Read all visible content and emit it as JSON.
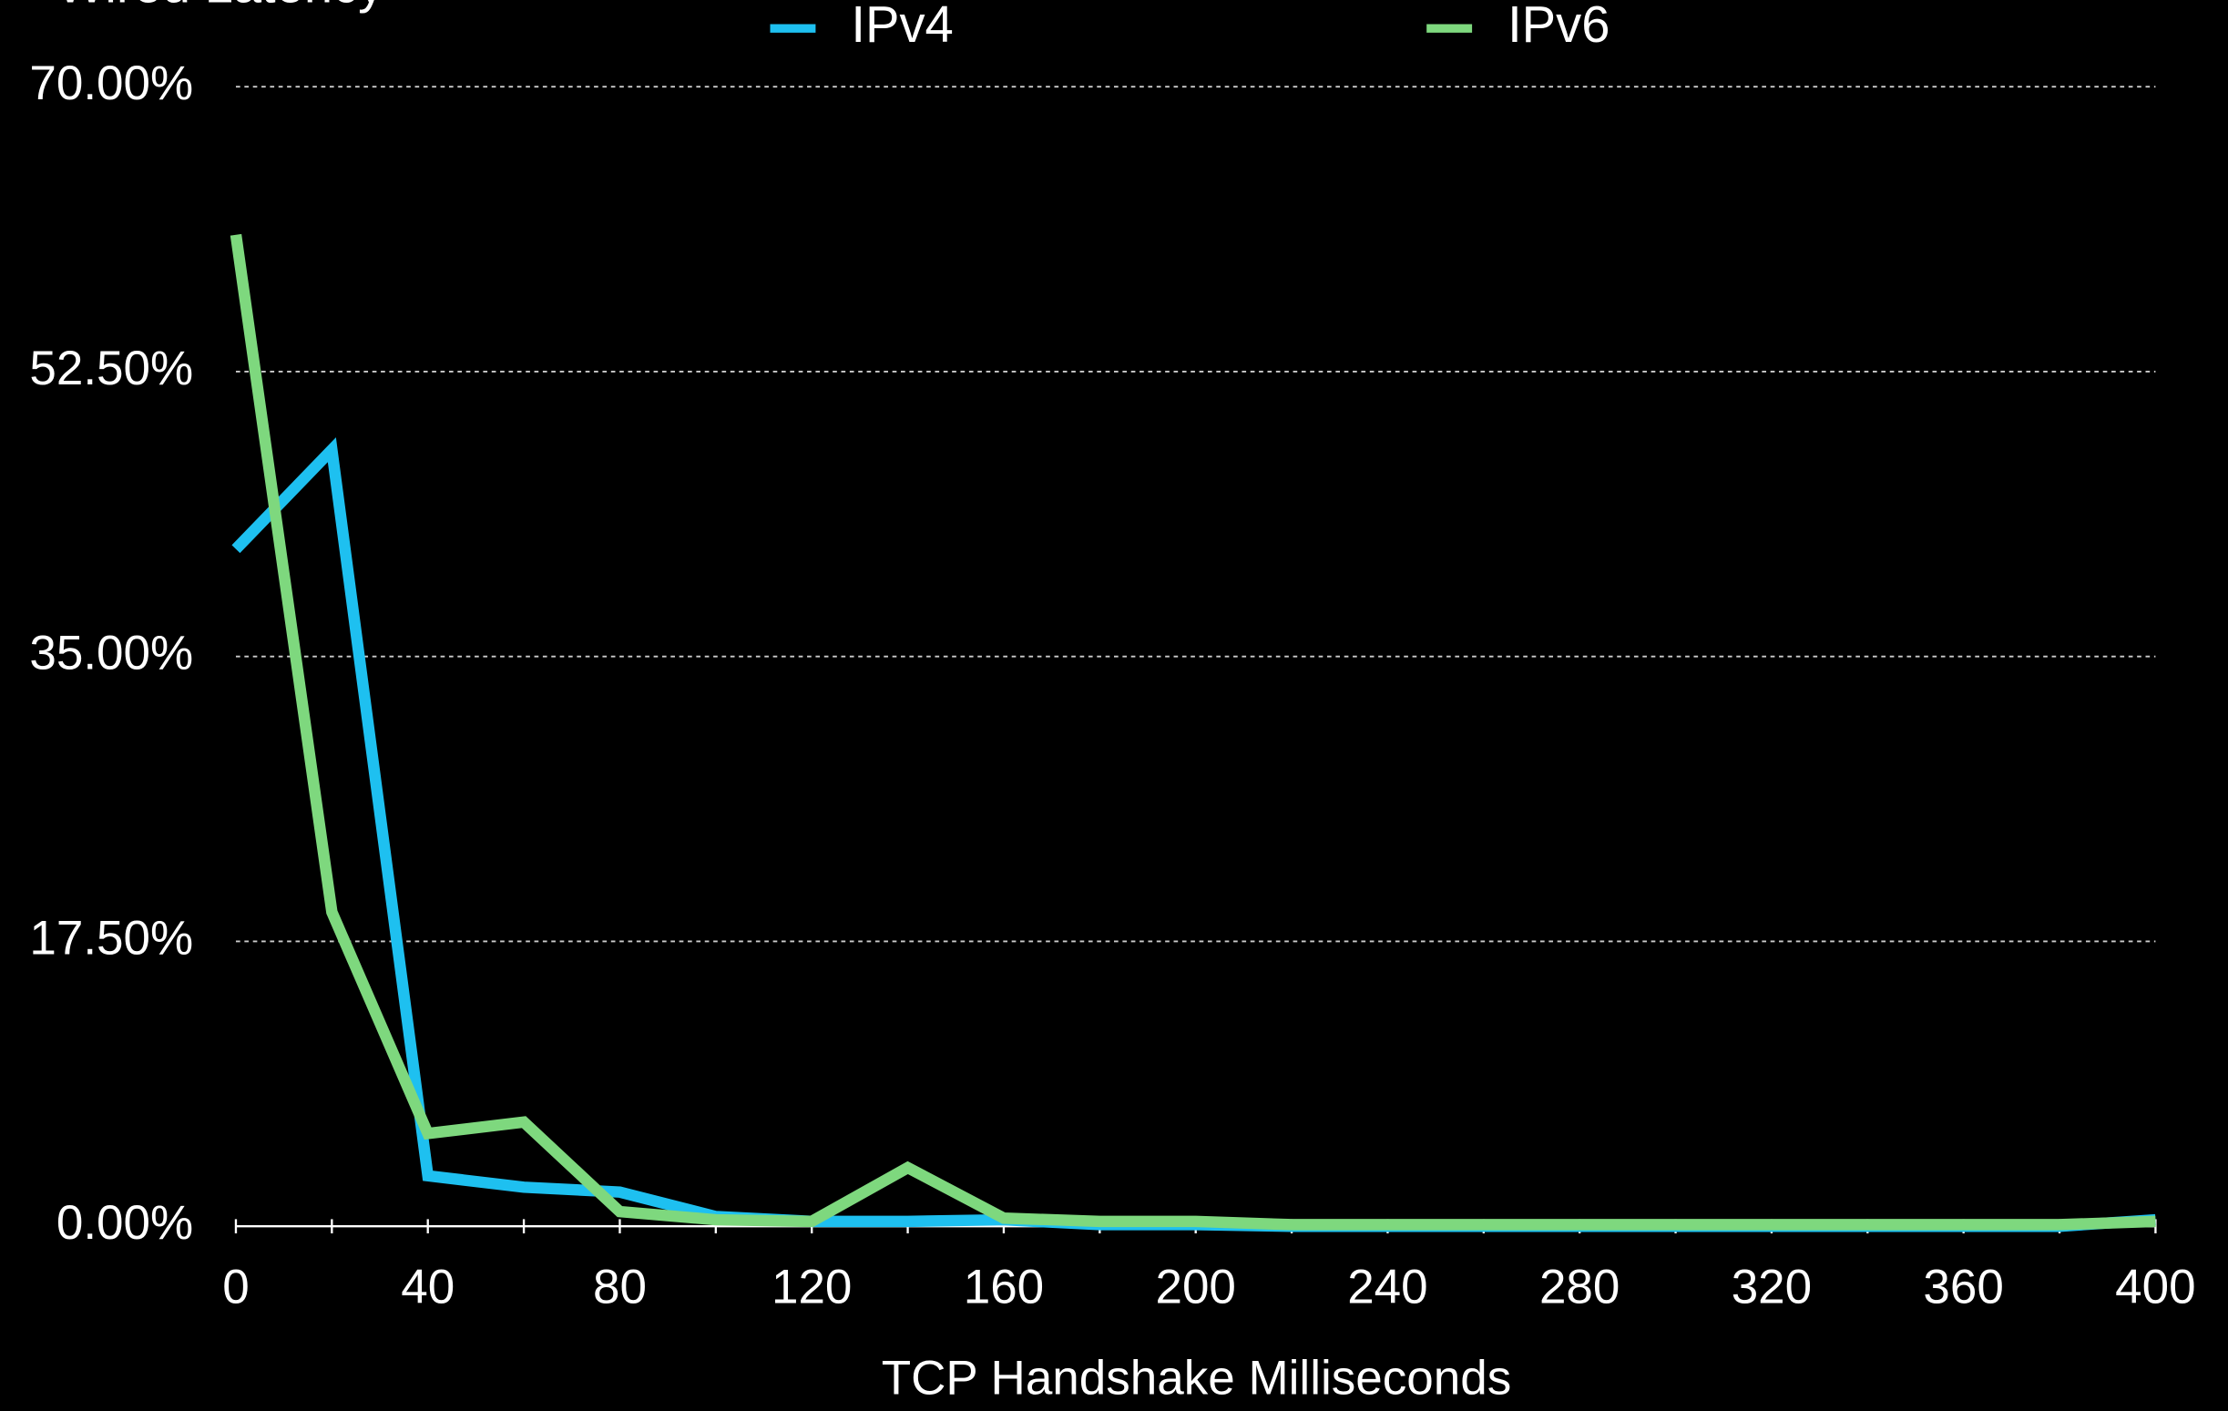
{
  "chart_data": {
    "type": "line",
    "title": "Wired Latency",
    "xlabel": "TCP Handshake Milliseconds",
    "x": [
      0,
      20,
      40,
      60,
      80,
      100,
      120,
      140,
      160,
      180,
      200,
      220,
      240,
      260,
      280,
      300,
      320,
      340,
      360,
      380,
      400
    ],
    "series": [
      {
        "name": "IPv4",
        "color": "#1ec0f0",
        "values": [
          41.6,
          47.7,
          3.1,
          2.4,
          2.1,
          0.6,
          0.3,
          0.3,
          0.4,
          0.1,
          0.1,
          0,
          0,
          0,
          0,
          0,
          0,
          0,
          0,
          0,
          0.4
        ]
      },
      {
        "name": "IPv6",
        "color": "#7ed87e",
        "values": [
          60.9,
          19.3,
          5.7,
          6.4,
          0.9,
          0.4,
          0.3,
          3.6,
          0.5,
          0.3,
          0.3,
          0.1,
          0.1,
          0.1,
          0.1,
          0.1,
          0.1,
          0.1,
          0.1,
          0.1,
          0.3
        ]
      }
    ],
    "xlim": [
      0,
      400
    ],
    "xticks": [
      0,
      40,
      80,
      120,
      160,
      200,
      240,
      280,
      320,
      360,
      400
    ],
    "ylim": [
      0,
      70
    ],
    "yticks": [
      {
        "value": 0,
        "label": "0.00%"
      },
      {
        "value": 17.5,
        "label": "17.50%"
      },
      {
        "value": 35,
        "label": "35.00%"
      },
      {
        "value": 52.5,
        "label": "52.50%"
      },
      {
        "value": 70,
        "label": "70.00%"
      }
    ],
    "grid": true,
    "legend": "top"
  }
}
